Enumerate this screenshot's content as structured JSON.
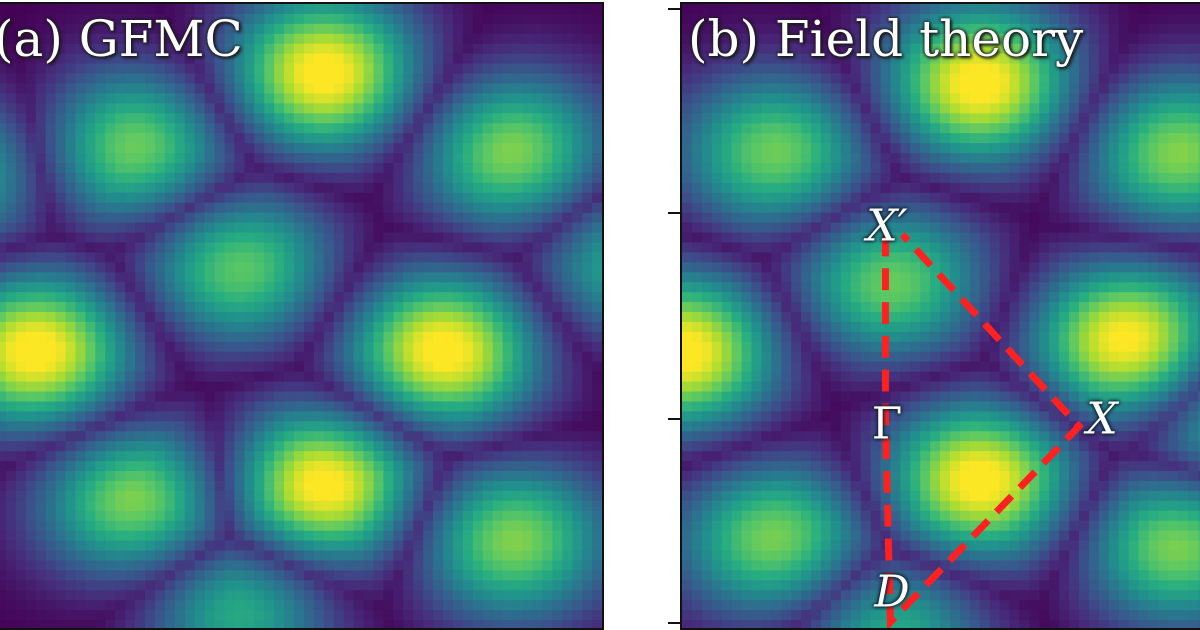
{
  "colors": {
    "colormap": [
      "#440154",
      "#472a7a",
      "#3b518b",
      "#2c718e",
      "#21908d",
      "#27ad81",
      "#5cc863",
      "#aadc32",
      "#fde725"
    ],
    "path": "#ff2020"
  },
  "panels": [
    {
      "label": "(a) GFMC"
    },
    {
      "label": "(b) Field theory"
    }
  ],
  "chart_data": {
    "type": "heatmap",
    "colormap": "viridis",
    "grid": false,
    "panels": [
      {
        "title": "(a) GFMC"
      },
      {
        "title": "(b) Field theory",
        "annotations": [
          {
            "label": "X′"
          },
          {
            "label": "Γ"
          },
          {
            "label": "X"
          },
          {
            "label": "D"
          }
        ],
        "path": [
          "X′",
          "Γ",
          "D",
          "X",
          "X′"
        ]
      }
    ]
  }
}
